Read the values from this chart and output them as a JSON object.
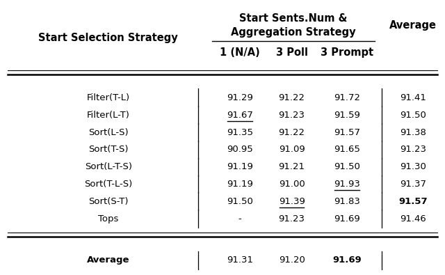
{
  "title_line1": "Start Sents.Num &",
  "title_line2": "Aggregation Strategy",
  "col_header_row1": "Start Selection Strategy",
  "col_subheaders": [
    "1 (N/A)",
    "3 Poll",
    "3 Prompt"
  ],
  "col_average": "Average",
  "rows": [
    {
      "name": "Filter(T-L)",
      "vals": [
        "91.29",
        "91.22",
        "91.72"
      ],
      "avg": "91.41",
      "underline": [],
      "bold_avg": false
    },
    {
      "name": "Filter(L-T)",
      "vals": [
        "91.67",
        "91.23",
        "91.59"
      ],
      "avg": "91.50",
      "underline": [
        0
      ],
      "bold_avg": false
    },
    {
      "name": "Sort(L-S)",
      "vals": [
        "91.35",
        "91.22",
        "91.57"
      ],
      "avg": "91.38",
      "underline": [],
      "bold_avg": false
    },
    {
      "name": "Sort(T-S)",
      "vals": [
        "90.95",
        "91.09",
        "91.65"
      ],
      "avg": "91.23",
      "underline": [],
      "bold_avg": false
    },
    {
      "name": "Sort(L-T-S)",
      "vals": [
        "91.19",
        "91.21",
        "91.50"
      ],
      "avg": "91.30",
      "underline": [],
      "bold_avg": false
    },
    {
      "name": "Sort(T-L-S)",
      "vals": [
        "91.19",
        "91.00",
        "91.93"
      ],
      "avg": "91.37",
      "underline": [
        2
      ],
      "bold_avg": false
    },
    {
      "name": "Sort(S-T)",
      "vals": [
        "91.50",
        "91.39",
        "91.83"
      ],
      "avg": "91.57",
      "underline": [
        1
      ],
      "bold_avg": true
    },
    {
      "name": "Tops",
      "vals": [
        "-",
        "91.23",
        "91.69"
      ],
      "avg": "91.46",
      "underline": [],
      "bold_avg": false
    }
  ],
  "avg_row": {
    "name": "Average",
    "vals": [
      "91.31",
      "91.20",
      "91.69"
    ],
    "bold": [
      2
    ]
  },
  "bg_color": "#ffffff"
}
